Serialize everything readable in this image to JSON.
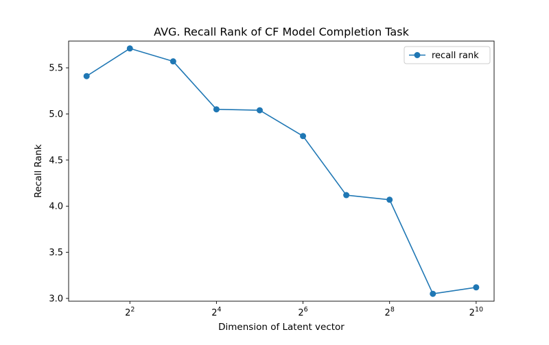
{
  "chart_data": {
    "type": "line",
    "title": "AVG. Recall Rank of CF Model Completion Task",
    "xlabel": "Dimension of Latent vector",
    "ylabel": "Recall Rank",
    "x_scale": "log2",
    "x": [
      2,
      4,
      8,
      16,
      32,
      64,
      128,
      256,
      512,
      1024
    ],
    "xlim": [
      1.5,
      1365
    ],
    "ylim": [
      2.97,
      5.79
    ],
    "x_ticks": [
      {
        "value": 4,
        "base": "2",
        "exp": "2"
      },
      {
        "value": 16,
        "base": "2",
        "exp": "4"
      },
      {
        "value": 64,
        "base": "2",
        "exp": "6"
      },
      {
        "value": 256,
        "base": "2",
        "exp": "8"
      },
      {
        "value": 1024,
        "base": "2",
        "exp": "10"
      }
    ],
    "y_ticks": [
      {
        "value": 3.0,
        "label": "3.0"
      },
      {
        "value": 3.5,
        "label": "3.5"
      },
      {
        "value": 4.0,
        "label": "4.0"
      },
      {
        "value": 4.5,
        "label": "4.5"
      },
      {
        "value": 5.0,
        "label": "5.0"
      },
      {
        "value": 5.5,
        "label": "5.5"
      }
    ],
    "series": [
      {
        "name": "recall rank",
        "color": "#1f77b4",
        "marker": "circle",
        "values": [
          5.41,
          5.71,
          5.57,
          5.05,
          5.04,
          4.76,
          4.12,
          4.07,
          3.05,
          3.12
        ]
      }
    ],
    "grid": false,
    "legend_position": "top-right"
  }
}
